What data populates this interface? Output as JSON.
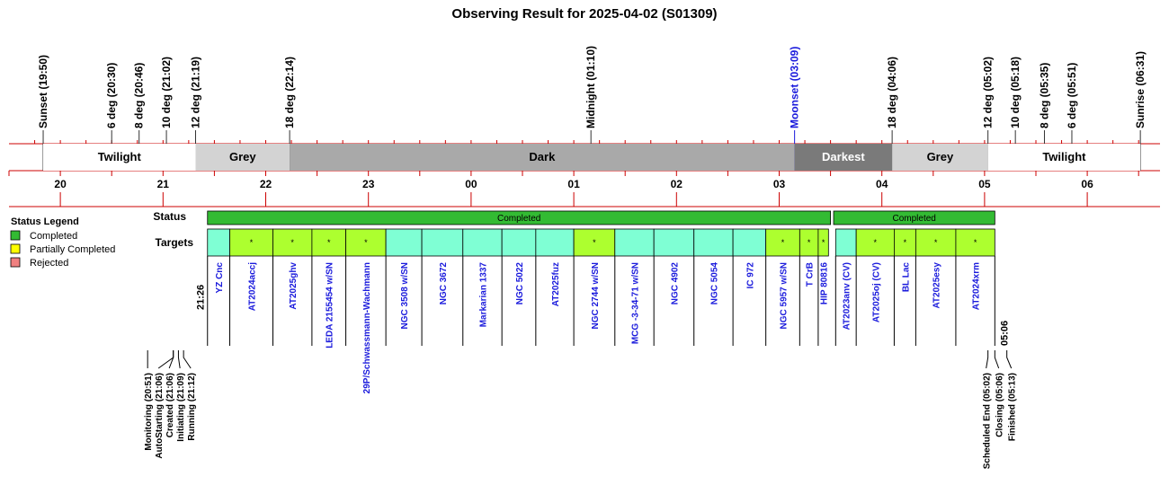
{
  "title": "Observing Result for 2025-04-02 (S01309)",
  "chart_data": {
    "type": "timeline",
    "x_axis": {
      "unit": "hour",
      "start_hour": 19.5,
      "ticks": [
        {
          "label": "20",
          "hour": 20
        },
        {
          "label": "21",
          "hour": 21
        },
        {
          "label": "22",
          "hour": 22
        },
        {
          "label": "23",
          "hour": 23
        },
        {
          "label": "00",
          "hour": 24
        },
        {
          "label": "01",
          "hour": 25
        },
        {
          "label": "02",
          "hour": 26
        },
        {
          "label": "03",
          "hour": 27
        },
        {
          "label": "04",
          "hour": 28
        },
        {
          "label": "05",
          "hour": 29
        },
        {
          "label": "06",
          "hour": 30
        }
      ]
    },
    "events": [
      {
        "label": "Sunset (19:50)",
        "hour": 19.833,
        "color": "#000000"
      },
      {
        "label": "6 deg (20:30)",
        "hour": 20.5,
        "color": "#000000"
      },
      {
        "label": "8 deg (20:46)",
        "hour": 20.767,
        "color": "#000000"
      },
      {
        "label": "10 deg (21:02)",
        "hour": 21.033,
        "color": "#000000"
      },
      {
        "label": "12 deg (21:19)",
        "hour": 21.317,
        "color": "#000000"
      },
      {
        "label": "18 deg (22:14)",
        "hour": 22.233,
        "color": "#000000"
      },
      {
        "label": "Midnight (01:10)",
        "hour": 25.167,
        "color": "#000000"
      },
      {
        "label": "Moonset (03:09)",
        "hour": 27.15,
        "color": "#1a1adc"
      },
      {
        "label": "18 deg (04:06)",
        "hour": 28.1,
        "color": "#000000"
      },
      {
        "label": "12 deg (05:02)",
        "hour": 29.033,
        "color": "#000000"
      },
      {
        "label": "10 deg (05:18)",
        "hour": 29.3,
        "color": "#000000"
      },
      {
        "label": "8 deg (05:35)",
        "hour": 29.583,
        "color": "#000000"
      },
      {
        "label": "6 deg (05:51)",
        "hour": 29.85,
        "color": "#000000"
      },
      {
        "label": "Sunrise (06:31)",
        "hour": 30.517,
        "color": "#000000"
      }
    ],
    "sky_periods": [
      {
        "label": "Twilight",
        "start": 19.833,
        "end": 21.317,
        "color": "#ffffff",
        "text_color": "#000000"
      },
      {
        "label": "Grey",
        "start": 21.317,
        "end": 22.233,
        "color": "#d3d3d3",
        "text_color": "#000000"
      },
      {
        "label": "Dark",
        "start": 22.233,
        "end": 27.15,
        "color": "#a9a9a9",
        "text_color": "#000000"
      },
      {
        "label": "Darkest",
        "start": 27.15,
        "end": 28.1,
        "color": "#7a7a7a",
        "text_color": "#ffffff"
      },
      {
        "label": "Grey",
        "start": 28.1,
        "end": 29.033,
        "color": "#d3d3d3",
        "text_color": "#000000"
      },
      {
        "label": "Twilight",
        "start": 29.033,
        "end": 30.517,
        "color": "#ffffff",
        "text_color": "#000000"
      }
    ],
    "row_labels": {
      "status": "Status",
      "targets": "Targets"
    },
    "status_segments": [
      {
        "label": "Completed",
        "start": 21.433,
        "end": 27.5,
        "color": "#33bb33"
      },
      {
        "label": "Completed",
        "start": 27.53,
        "end": 29.1,
        "color": "#33bb33"
      }
    ],
    "targets": [
      {
        "name": "YZ Cnc",
        "start": 21.433,
        "end": 21.65,
        "color": "#7fffd4",
        "mark": ""
      },
      {
        "name": "AT2024accj",
        "start": 21.65,
        "end": 22.07,
        "color": "#adff2f",
        "mark": "*"
      },
      {
        "name": "AT2025ghv",
        "start": 22.07,
        "end": 22.45,
        "color": "#adff2f",
        "mark": "*"
      },
      {
        "name": "LEDA 2155454 w/SN",
        "start": 22.45,
        "end": 22.78,
        "color": "#adff2f",
        "mark": "*"
      },
      {
        "name": "29P/Schwassmann-Wachmann",
        "start": 22.78,
        "end": 23.17,
        "color": "#adff2f",
        "mark": "*"
      },
      {
        "name": "NGC 3508 w/SN",
        "start": 23.17,
        "end": 23.52,
        "color": "#7fffd4",
        "mark": ""
      },
      {
        "name": "NGC 3672",
        "start": 23.52,
        "end": 23.92,
        "color": "#7fffd4",
        "mark": ""
      },
      {
        "name": "Markarian 1337",
        "start": 23.92,
        "end": 24.3,
        "color": "#7fffd4",
        "mark": ""
      },
      {
        "name": "NGC 5022",
        "start": 24.3,
        "end": 24.63,
        "color": "#7fffd4",
        "mark": ""
      },
      {
        "name": "AT2025fuz",
        "start": 24.63,
        "end": 25.0,
        "color": "#7fffd4",
        "mark": ""
      },
      {
        "name": "NGC 2744 w/SN",
        "start": 25.0,
        "end": 25.4,
        "color": "#adff2f",
        "mark": "*"
      },
      {
        "name": "MCG -3-34-71 w/SN",
        "start": 25.4,
        "end": 25.78,
        "color": "#7fffd4",
        "mark": ""
      },
      {
        "name": "NGC 4902",
        "start": 25.78,
        "end": 26.17,
        "color": "#7fffd4",
        "mark": ""
      },
      {
        "name": "NGC 5054",
        "start": 26.17,
        "end": 26.55,
        "color": "#7fffd4",
        "mark": ""
      },
      {
        "name": "IC 972",
        "start": 26.55,
        "end": 26.87,
        "color": "#7fffd4",
        "mark": ""
      },
      {
        "name": "NGC 5957 w/SN",
        "start": 26.87,
        "end": 27.2,
        "color": "#adff2f",
        "mark": "*"
      },
      {
        "name": "T CrB",
        "start": 27.2,
        "end": 27.38,
        "color": "#adff2f",
        "mark": "*"
      },
      {
        "name": "HIP 80816",
        "start": 27.38,
        "end": 27.48,
        "color": "#adff2f",
        "mark": "*"
      },
      {
        "name": "AT2023anv (CV)",
        "start": 27.55,
        "end": 27.75,
        "color": "#7fffd4",
        "mark": ""
      },
      {
        "name": "AT2025oj (CV)",
        "start": 27.75,
        "end": 28.12,
        "color": "#adff2f",
        "mark": "*"
      },
      {
        "name": "BL Lac",
        "start": 28.12,
        "end": 28.33,
        "color": "#adff2f",
        "mark": "*"
      },
      {
        "name": "AT2025esy",
        "start": 28.33,
        "end": 28.72,
        "color": "#adff2f",
        "mark": "*"
      },
      {
        "name": "AT2024xrm",
        "start": 28.72,
        "end": 29.1,
        "color": "#adff2f",
        "mark": "*"
      }
    ],
    "start_label": {
      "text": "21:26",
      "hour": 21.433
    },
    "end_label": {
      "text": "05:06",
      "hour": 29.1
    },
    "bottom_events": [
      {
        "label": "Monitoring (20:51)",
        "hour": 20.85
      },
      {
        "label": "AutoStarting (21:06)",
        "hour": 21.1
      },
      {
        "label": "Created (21:06)",
        "hour": 21.1
      },
      {
        "label": "Initiating (21:09)",
        "hour": 21.15
      },
      {
        "label": "Running (21:12)",
        "hour": 21.2
      },
      {
        "label": "Scheduled End (05:02)",
        "hour": 29.033
      },
      {
        "label": "Closing (05:06)",
        "hour": 29.1
      },
      {
        "label": "Finished (05:13)",
        "hour": 29.217
      }
    ],
    "legend": {
      "title": "Status Legend",
      "items": [
        {
          "label": "Completed",
          "color": "#33bb33"
        },
        {
          "label": "Partially Completed",
          "color": "#ffff00"
        },
        {
          "label": "Rejected",
          "color": "#f08080"
        }
      ]
    },
    "colors": {
      "axis_line": "#cc0000",
      "target_text": "#1a1adc"
    }
  }
}
